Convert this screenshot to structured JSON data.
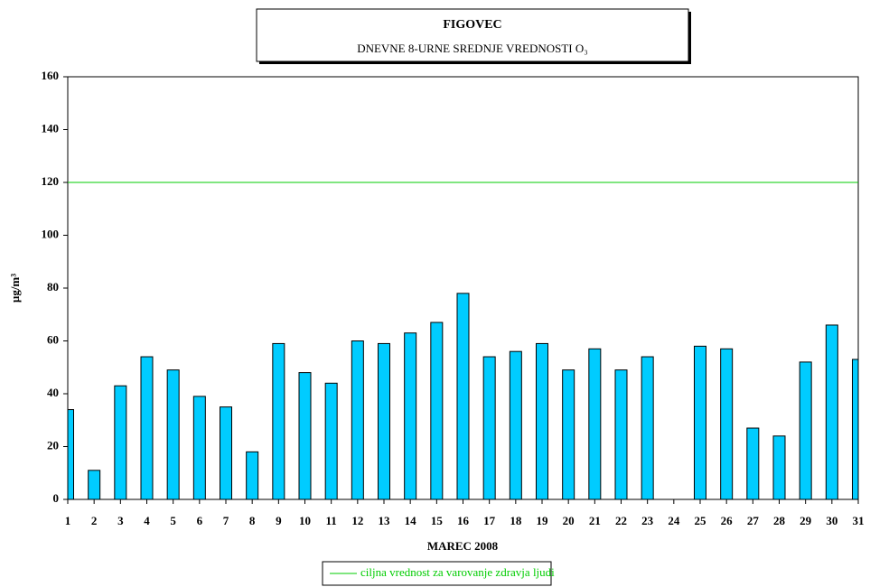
{
  "chart_data": {
    "type": "bar",
    "title": "FIGOVEC",
    "subtitle": "DNEVNE 8-URNE SREDNJE VREDNOSTI O₃",
    "x_label": "MAREC 2008",
    "y_label": "µg/m³",
    "x": [
      1,
      2,
      3,
      4,
      5,
      6,
      7,
      8,
      9,
      10,
      11,
      12,
      13,
      14,
      15,
      16,
      17,
      18,
      19,
      20,
      21,
      22,
      23,
      24,
      25,
      26,
      27,
      28,
      29,
      30,
      31
    ],
    "values": [
      34,
      11,
      43,
      54,
      49,
      39,
      35,
      18,
      59,
      48,
      44,
      60,
      59,
      63,
      67,
      78,
      54,
      56,
      59,
      49,
      57,
      49,
      54,
      null,
      58,
      57,
      27,
      24,
      52,
      66,
      53
    ],
    "color": "#00ccff",
    "xlim": [
      1,
      31
    ],
    "xticks": [
      1,
      2,
      3,
      4,
      5,
      6,
      7,
      8,
      9,
      10,
      11,
      12,
      13,
      14,
      15,
      16,
      17,
      18,
      19,
      20,
      21,
      22,
      23,
      24,
      25,
      26,
      27,
      28,
      29,
      30,
      31
    ],
    "ylim": [
      0,
      160
    ],
    "yticks": [
      0,
      20,
      40,
      60,
      80,
      100,
      120,
      140,
      160
    ],
    "reference_lines": [
      {
        "value": 120,
        "label": "ciljna vrednost za varovanje zdravja ljudi",
        "color": "#00cc00"
      }
    ]
  }
}
